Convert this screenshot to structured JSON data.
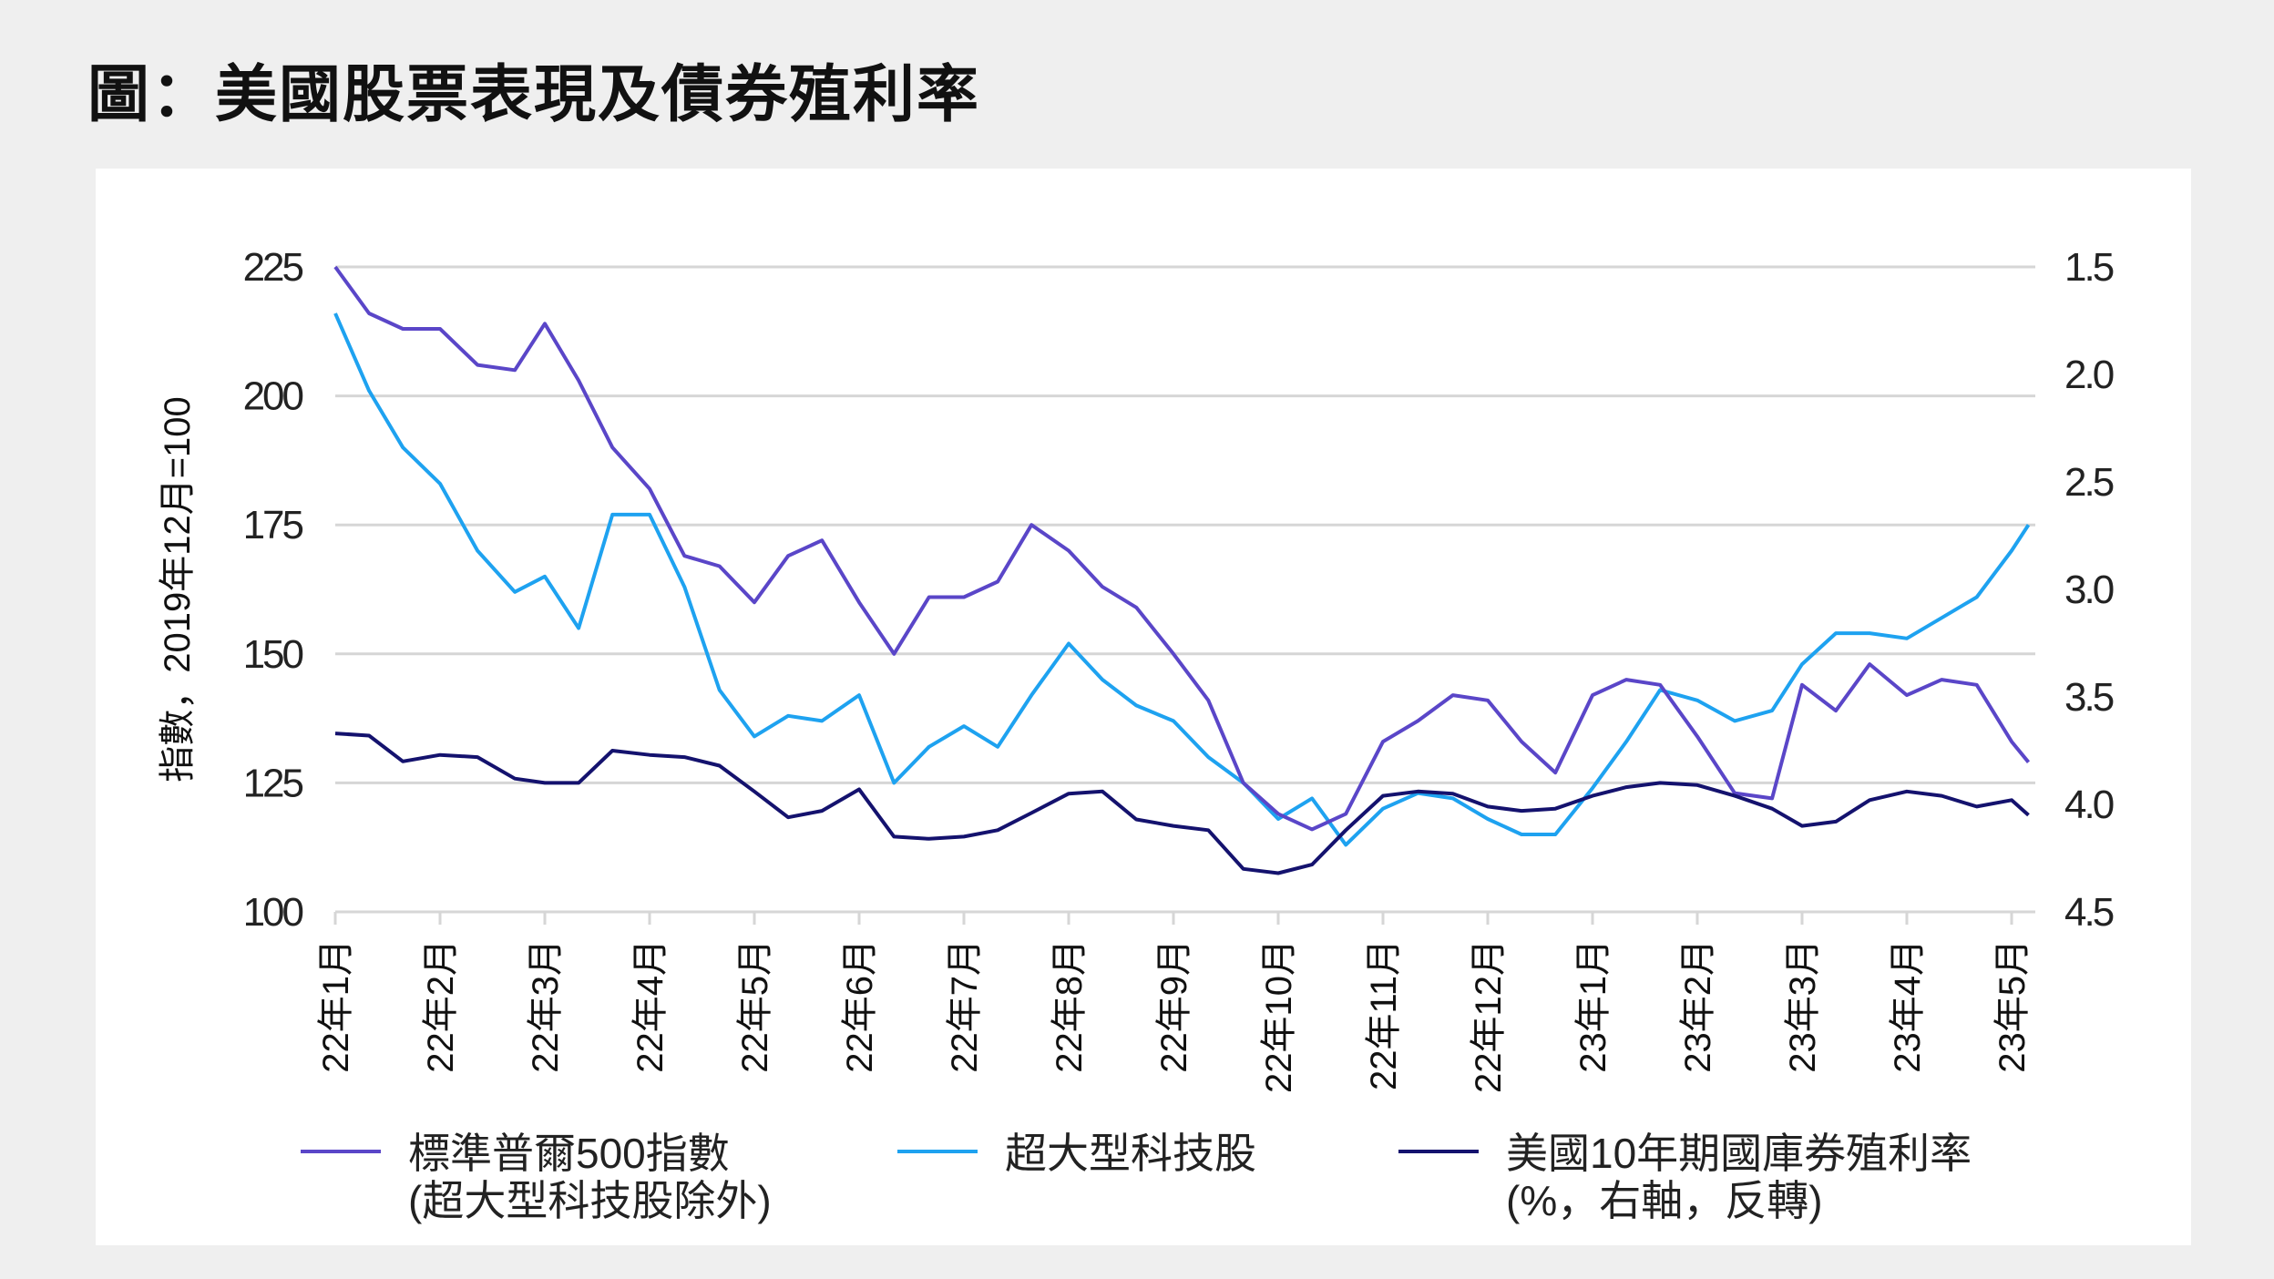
{
  "title": "圖：美國股票表現及債券殖利率",
  "chart_data": {
    "type": "line",
    "title": "",
    "ylabel_left": "指數，2019年12月=100",
    "ylim_left": [
      100,
      225
    ],
    "yticks_left": [
      "225",
      "200",
      "175",
      "150",
      "125",
      "100"
    ],
    "yticks_left_values": [
      225,
      200,
      175,
      150,
      125,
      100
    ],
    "ylim_right": [
      1.5,
      4.5
    ],
    "right_axis_inverted": true,
    "yticks_right": [
      "1.5",
      "2.0",
      "2.5",
      "3.0",
      "3.5",
      "4.0",
      "4.5"
    ],
    "yticks_right_values": [
      1.5,
      2.0,
      2.5,
      3.0,
      3.5,
      4.0,
      4.5
    ],
    "xticks": [
      "22年1月",
      "22年2月",
      "22年3月",
      "22年4月",
      "22年5月",
      "22年6月",
      "22年7月",
      "22年8月",
      "22年9月",
      "22年10月",
      "22年11月",
      "22年12月",
      "23年1月",
      "23年2月",
      "23年3月",
      "23年4月",
      "23年5月"
    ],
    "grid": "horizontal",
    "legend_position": "bottom",
    "x": [
      "2022-01-01",
      "2022-01-11",
      "2022-01-21",
      "2022-02-01",
      "2022-02-11",
      "2022-02-21",
      "2022-03-01",
      "2022-03-11",
      "2022-03-21",
      "2022-04-01",
      "2022-04-11",
      "2022-04-21",
      "2022-05-01",
      "2022-05-11",
      "2022-05-21",
      "2022-06-01",
      "2022-06-11",
      "2022-06-21",
      "2022-07-01",
      "2022-07-11",
      "2022-07-21",
      "2022-08-01",
      "2022-08-11",
      "2022-08-21",
      "2022-09-01",
      "2022-09-11",
      "2022-09-21",
      "2022-10-01",
      "2022-10-11",
      "2022-10-21",
      "2022-11-01",
      "2022-11-11",
      "2022-11-21",
      "2022-12-01",
      "2022-12-11",
      "2022-12-21",
      "2023-01-01",
      "2023-01-11",
      "2023-01-21",
      "2023-02-01",
      "2023-02-11",
      "2023-02-21",
      "2023-03-01",
      "2023-03-11",
      "2023-03-21",
      "2023-04-01",
      "2023-04-11",
      "2023-04-21",
      "2023-05-01",
      "2023-05-06"
    ],
    "series": [
      {
        "name_line1": "標準普爾500指數",
        "name_line2": "(超大型科技股除外)",
        "axis": "left",
        "color": "#5a46c8",
        "values": [
          225,
          216,
          213,
          213,
          206,
          205,
          214,
          203,
          190,
          182,
          169,
          167,
          160,
          169,
          172,
          160,
          150,
          161,
          161,
          164,
          175,
          170,
          163,
          159,
          150,
          141,
          125,
          119,
          116,
          119,
          133,
          137,
          142,
          141,
          133,
          127,
          142,
          145,
          144,
          134,
          123,
          122,
          144,
          139,
          148,
          142,
          145,
          144,
          133,
          129
        ]
      },
      {
        "name_line1": "超大型科技股",
        "name_line2": "",
        "axis": "left",
        "color": "#1ea2f0",
        "values": [
          216,
          201,
          190,
          183,
          170,
          162,
          165,
          155,
          177,
          177,
          163,
          143,
          134,
          138,
          137,
          142,
          125,
          132,
          136,
          132,
          142,
          152,
          145,
          140,
          137,
          130,
          125,
          118,
          122,
          113,
          120,
          123,
          122,
          118,
          115,
          115,
          124,
          133,
          143,
          141,
          137,
          139,
          148,
          154,
          154,
          153,
          157,
          161,
          170,
          175
        ]
      },
      {
        "name_line1": "美國10年期國庫券殖利率",
        "name_line2": "(%，右軸，反轉)",
        "axis": "right",
        "color": "#14126e",
        "values": [
          3.67,
          3.68,
          3.8,
          3.77,
          3.78,
          3.88,
          3.9,
          3.9,
          3.75,
          3.77,
          3.78,
          3.82,
          3.94,
          4.06,
          4.03,
          3.93,
          4.15,
          4.16,
          4.15,
          4.12,
          4.04,
          3.95,
          3.94,
          4.07,
          4.1,
          4.12,
          4.3,
          4.32,
          4.28,
          4.12,
          3.96,
          3.94,
          3.95,
          4.01,
          4.03,
          4.02,
          3.96,
          3.92,
          3.9,
          3.91,
          3.96,
          4.02,
          4.1,
          4.08,
          3.98,
          3.94,
          3.96,
          4.01,
          3.98,
          4.05
        ]
      }
    ]
  }
}
